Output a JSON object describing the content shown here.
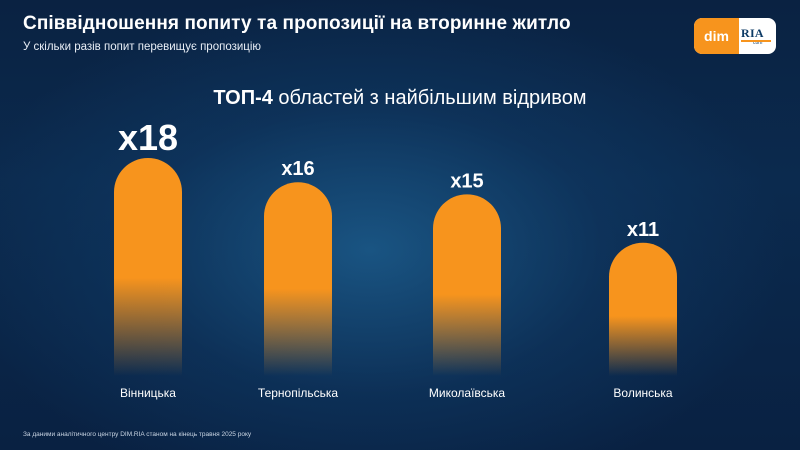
{
  "header": {
    "title": "Співвідношення попиту та пропозиції на вторинне житло",
    "subtitle": "У скільки разів попит перевищує пропозицію"
  },
  "logo": {
    "left_text": "dim",
    "right_text": "RIA",
    "suffix": "com",
    "accent_color": "#f7941d"
  },
  "headline": {
    "strong": "ТОП-4",
    "rest": " областей з найбільшим відривом"
  },
  "chart_data": {
    "type": "bar",
    "title": "",
    "categories": [
      "Вінницька",
      "Тернопільська",
      "Миколаївська",
      "Волинська"
    ],
    "values": [
      18,
      16,
      15,
      11
    ],
    "value_labels": [
      "x18",
      "x16",
      "x15",
      "x11"
    ],
    "ylim": [
      0,
      18
    ],
    "grid": false,
    "bar_color": "#f7941d"
  },
  "footnote": "За даними аналітичного центру DIM.RIA станом на кінець травня 2025 року"
}
